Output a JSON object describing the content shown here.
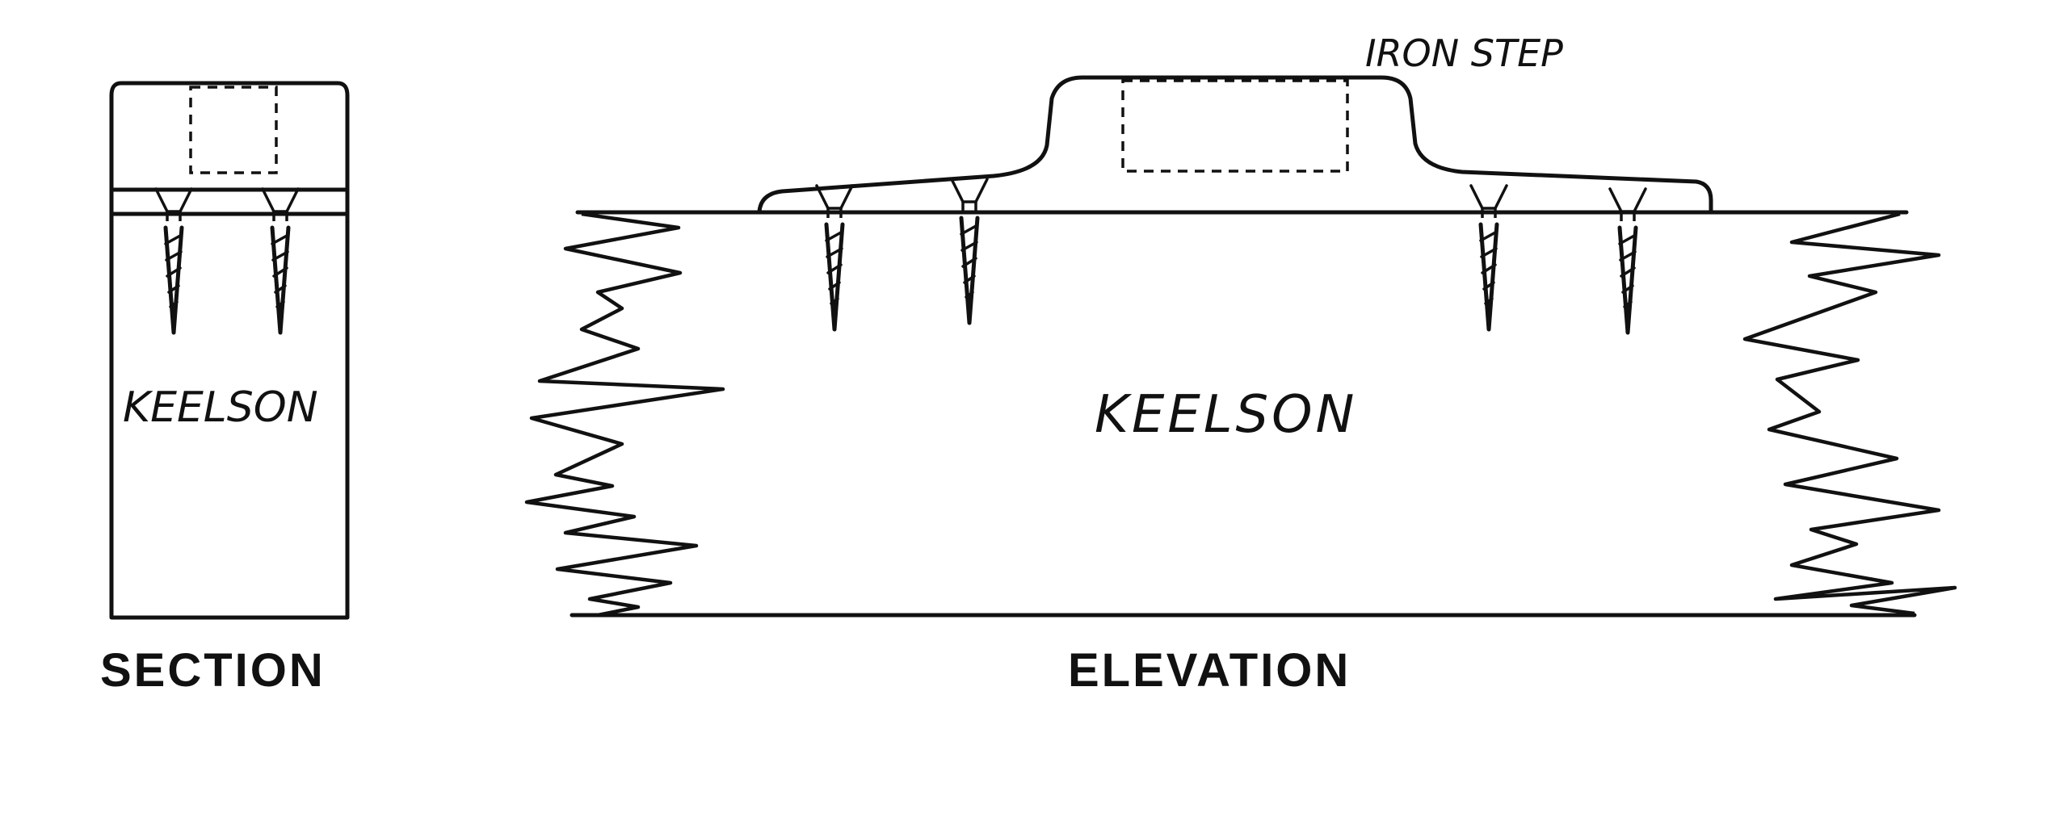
{
  "labels": {
    "iron_step": "IRON STEP",
    "keelson_section": "KEELSON",
    "keelson_elevation": "KEELSON",
    "section_caption": "SECTION",
    "elevation_caption": "ELEVATION"
  },
  "colors": {
    "ink": "#111111",
    "paper": "#ffffff"
  }
}
